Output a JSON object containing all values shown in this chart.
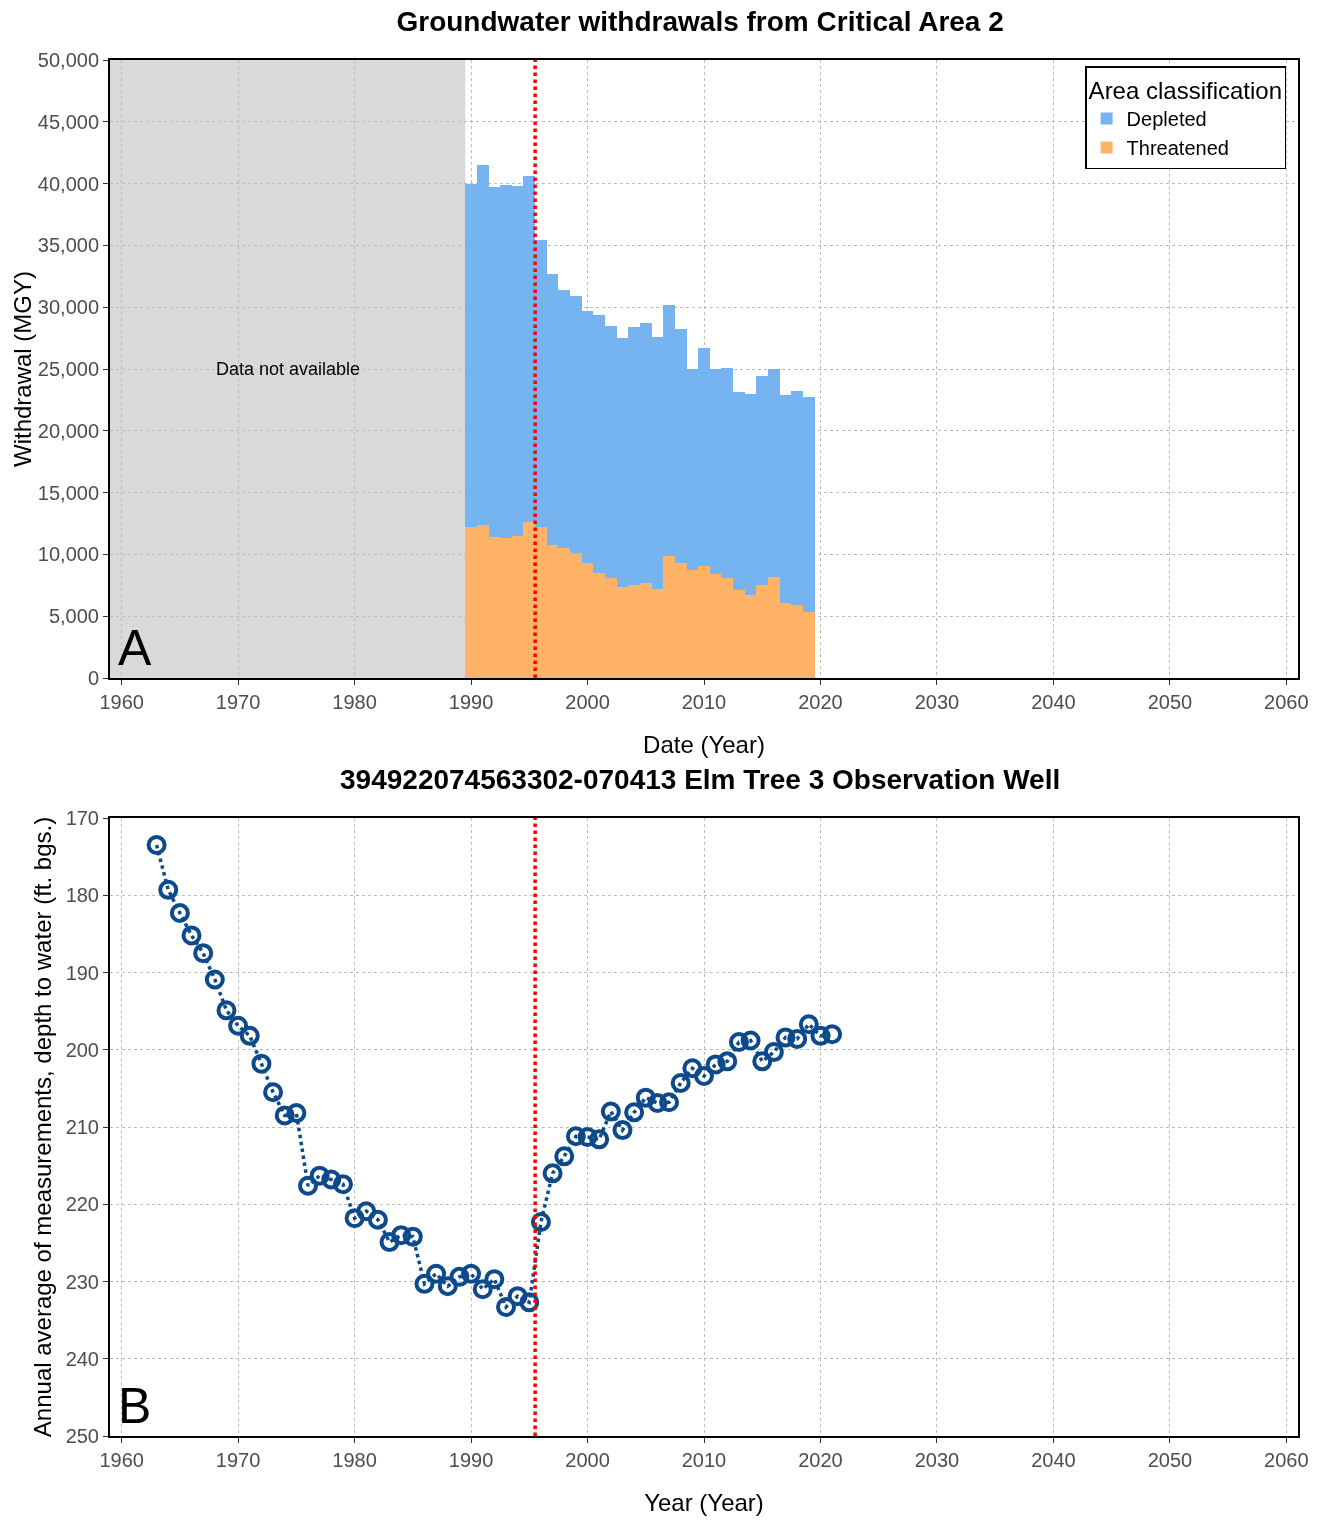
{
  "chart_data": [
    {
      "type": "bar",
      "title": "Groundwater withdrawals from Critical Area 2",
      "xlabel": "Date (Year)",
      "ylabel": "Withdrawal (MGY)",
      "legend_title": "Area classification",
      "stacked": true,
      "x": [
        1990,
        1991,
        1992,
        1993,
        1994,
        1995,
        1996,
        1997,
        1998,
        1999,
        2000,
        2001,
        2002,
        2003,
        2004,
        2005,
        2006,
        2007,
        2008,
        2009,
        2010,
        2011,
        2012,
        2013,
        2014,
        2015,
        2016,
        2017,
        2018,
        2019
      ],
      "series": [
        {
          "name": "Threatened",
          "color": "#ffb366",
          "values": [
            12200,
            12400,
            11400,
            11300,
            11500,
            12600,
            12200,
            10800,
            10500,
            10100,
            9300,
            8500,
            8100,
            7400,
            7500,
            7700,
            7200,
            9900,
            9300,
            8700,
            9100,
            8400,
            8100,
            7100,
            6700,
            7500,
            8200,
            6100,
            5900,
            5300
          ]
        },
        {
          "name": "Depleted",
          "color": "#75b4f0",
          "values": [
            27800,
            29100,
            28300,
            28600,
            28300,
            28000,
            23200,
            21900,
            20900,
            20800,
            20400,
            20900,
            20400,
            20100,
            20900,
            21000,
            20400,
            20300,
            18900,
            16300,
            17600,
            16600,
            17000,
            16000,
            16300,
            16900,
            16800,
            16800,
            17300,
            17400
          ]
        }
      ],
      "xlim": [
        1959,
        2061
      ],
      "xticks": [
        1960,
        1970,
        1980,
        1990,
        2000,
        2010,
        2020,
        2030,
        2040,
        2050,
        2060
      ],
      "ylim": [
        0,
        50000
      ],
      "yticks": [
        0,
        {
          "value": 5000,
          "label": "5,000"
        },
        {
          "value": 10000,
          "label": "10,000"
        },
        {
          "value": 15000,
          "label": "15,000"
        },
        {
          "value": 20000,
          "label": "20,000"
        },
        {
          "value": 25000,
          "label": "25,000"
        },
        {
          "value": 30000,
          "label": "30,000"
        },
        {
          "value": 35000,
          "label": "35,000"
        },
        {
          "value": 40000,
          "label": "40,000"
        },
        {
          "value": 45000,
          "label": "45,000"
        },
        {
          "value": 50000,
          "label": "50,000"
        }
      ],
      "bands": [
        {
          "axis": "x",
          "from": 1959,
          "to": 1989.5,
          "label": "Data not available",
          "color": "#d9d9d9"
        }
      ],
      "ref_lines": [
        {
          "axis": "x",
          "value": 1995.5,
          "color": "#ff0000",
          "line_style": "dotted"
        }
      ],
      "annotations": [
        "A"
      ],
      "grid": true,
      "legend": "top right"
    },
    {
      "type": "line",
      "title": "394922074563302-070413 Elm Tree 3 Observation Well",
      "xlabel": "Year (Year)",
      "ylabel": "Annual average of measurements, depth to water (ft. bgs.)",
      "x": [
        1963,
        1964,
        1965,
        1966,
        1967,
        1968,
        1969,
        1970,
        1971,
        1972,
        1973,
        1974,
        1975,
        1976,
        1977,
        1978,
        1979,
        1980,
        1981,
        1982,
        1983,
        1984,
        1985,
        1986,
        1987,
        1988,
        1989,
        1990,
        1991,
        1992,
        1993,
        1994,
        1995,
        1996,
        1997,
        1998,
        1999,
        2000,
        2001,
        2002,
        2003,
        2004,
        2005,
        2006,
        2007,
        2008,
        2009,
        2010,
        2011,
        2012,
        2013,
        2014,
        2015,
        2016,
        2017,
        2018,
        2019,
        2020,
        2021
      ],
      "series": [
        {
          "color": "#0d4a8b",
          "values": [
            173.5,
            179.3,
            182.3,
            185.2,
            187.5,
            190.9,
            194.9,
            196.9,
            198.2,
            201.8,
            205.5,
            208.5,
            208.2,
            217.6,
            216.3,
            216.8,
            217.4,
            221.8,
            220.9,
            222.0,
            224.9,
            224.0,
            224.2,
            230.3,
            229.0,
            230.6,
            229.4,
            229.0,
            231.0,
            229.7,
            233.3,
            231.9,
            232.7,
            222.3,
            216.0,
            213.8,
            211.2,
            211.3,
            211.6,
            208.0,
            210.4,
            208.1,
            206.2,
            206.9,
            206.8,
            204.3,
            202.4,
            203.4,
            201.9,
            201.5,
            199.0,
            198.8,
            201.5,
            200.3,
            198.4,
            198.6,
            196.7,
            198.2,
            198.0
          ]
        }
      ],
      "xlim": [
        1959,
        2061
      ],
      "xticks": [
        1960,
        1970,
        1980,
        1990,
        2000,
        2010,
        2020,
        2030,
        2040,
        2050,
        2060
      ],
      "ylim": [
        250,
        170
      ],
      "yticks": [
        170,
        180,
        190,
        200,
        210,
        220,
        230,
        240,
        250
      ],
      "ref_lines": [
        {
          "axis": "x",
          "value": 1995.5,
          "color": "#ff0000",
          "line_style": "dotted"
        }
      ],
      "annotations": [
        "B"
      ],
      "grid": true,
      "marker": "circle",
      "line_style": "dotted"
    }
  ]
}
